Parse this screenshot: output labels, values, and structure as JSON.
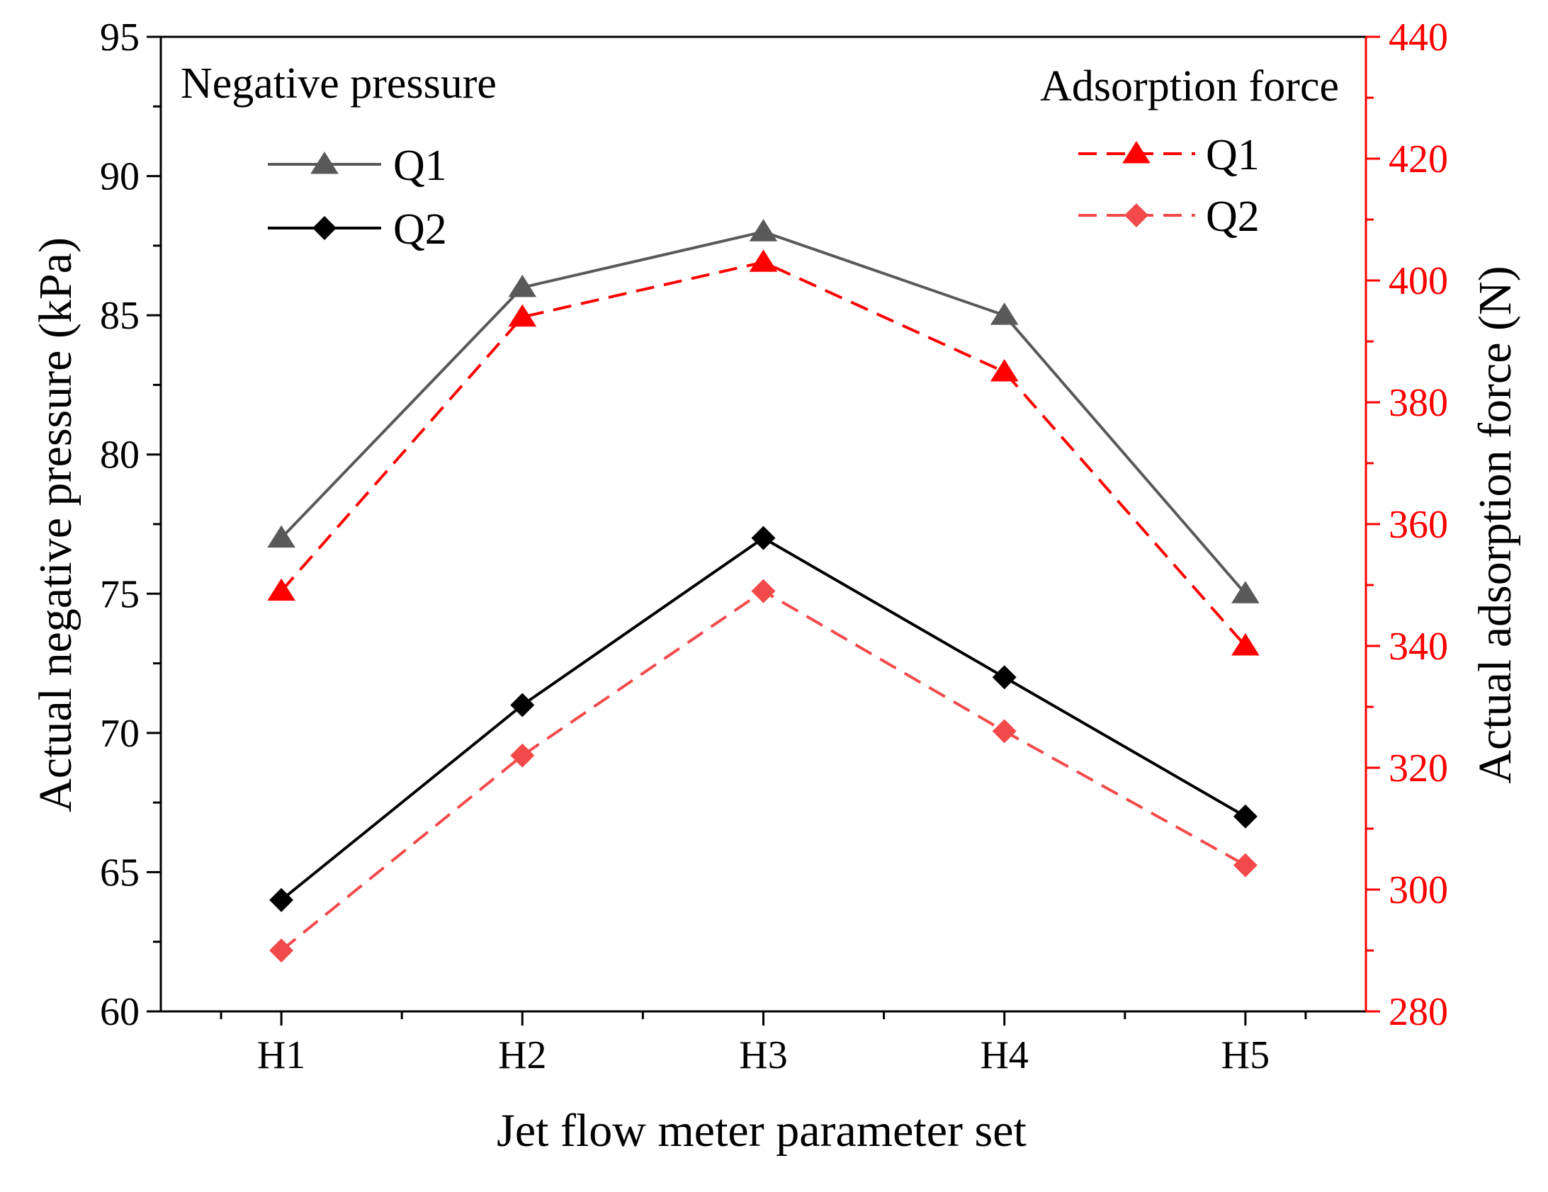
{
  "chart_data": {
    "type": "line",
    "xlabel": "Jet flow meter parameter set",
    "ylabel_left": "Actual negative pressure (kPa)",
    "ylabel_right": "Actual adsorption force (N)",
    "categories": [
      "H1",
      "H2",
      "H3",
      "H4",
      "H5"
    ],
    "left_axis": {
      "min": 60,
      "max": 95,
      "ticks": [
        60,
        65,
        70,
        75,
        80,
        85,
        90,
        95
      ]
    },
    "right_axis": {
      "min": 280,
      "max": 440,
      "ticks": [
        280,
        300,
        320,
        340,
        360,
        380,
        400,
        420,
        440
      ]
    },
    "legend_left": {
      "title": "Negative pressure",
      "position": "top-left",
      "series": [
        {
          "name": "Q1",
          "values": [
            77,
            86,
            88,
            85,
            75
          ],
          "color": "#595959",
          "marker": "triangle",
          "dash": false
        },
        {
          "name": "Q2",
          "values": [
            64,
            71,
            77,
            72,
            67
          ],
          "color": "#000000",
          "marker": "diamond",
          "dash": false
        }
      ]
    },
    "legend_right": {
      "title": "Adsorption force",
      "position": "top-right",
      "series": [
        {
          "name": "Q1",
          "values": [
            349,
            394,
            403,
            385,
            340
          ],
          "color": "#ff0000",
          "marker": "triangle",
          "dash": true
        },
        {
          "name": "Q2",
          "values": [
            290,
            322,
            349,
            326,
            304
          ],
          "color": "#f24a4a",
          "marker": "diamond",
          "dash": true
        }
      ]
    },
    "right_axis_color": "#ff0000"
  }
}
